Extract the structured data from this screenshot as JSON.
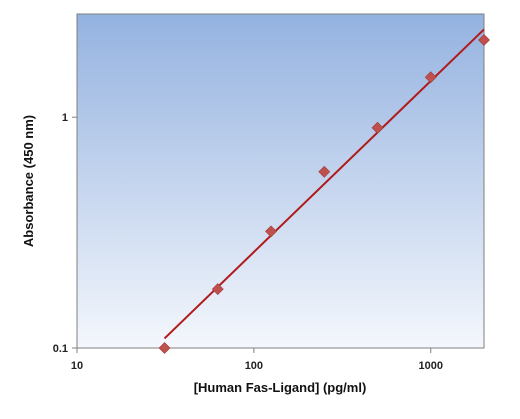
{
  "chart_data": {
    "type": "scatter",
    "title": "",
    "xlabel": "[Human Fas-Ligand] (pg/ml)",
    "ylabel": "Absorbance (450 nm)",
    "x_scale": "log",
    "y_scale": "log",
    "xlim": [
      10,
      2000
    ],
    "ylim": [
      0.1,
      2.8
    ],
    "x_ticks": [
      10,
      100,
      1000
    ],
    "x_tick_labels": [
      "10",
      "100",
      "1000"
    ],
    "y_ticks": [
      0.1,
      1
    ],
    "y_tick_labels": [
      "0.1",
      "1"
    ],
    "grid": false,
    "legend": "none",
    "series": [
      {
        "kind": "markers",
        "marker": "diamond",
        "color": "#c0504d",
        "x": [
          31.25,
          62.5,
          125,
          250,
          500,
          1000,
          2000
        ],
        "y": [
          0.1,
          0.18,
          0.32,
          0.58,
          0.9,
          1.49,
          2.16
        ]
      },
      {
        "kind": "fit-line",
        "color": "#b01a1a",
        "x": [
          31.25,
          2000
        ],
        "y": [
          0.11,
          2.4
        ]
      }
    ],
    "colors": {
      "background_top": "#94b2e0",
      "background_bottom": "#f4f7fc",
      "marker": "#c0504d",
      "fit_line": "#b01a1a"
    }
  }
}
